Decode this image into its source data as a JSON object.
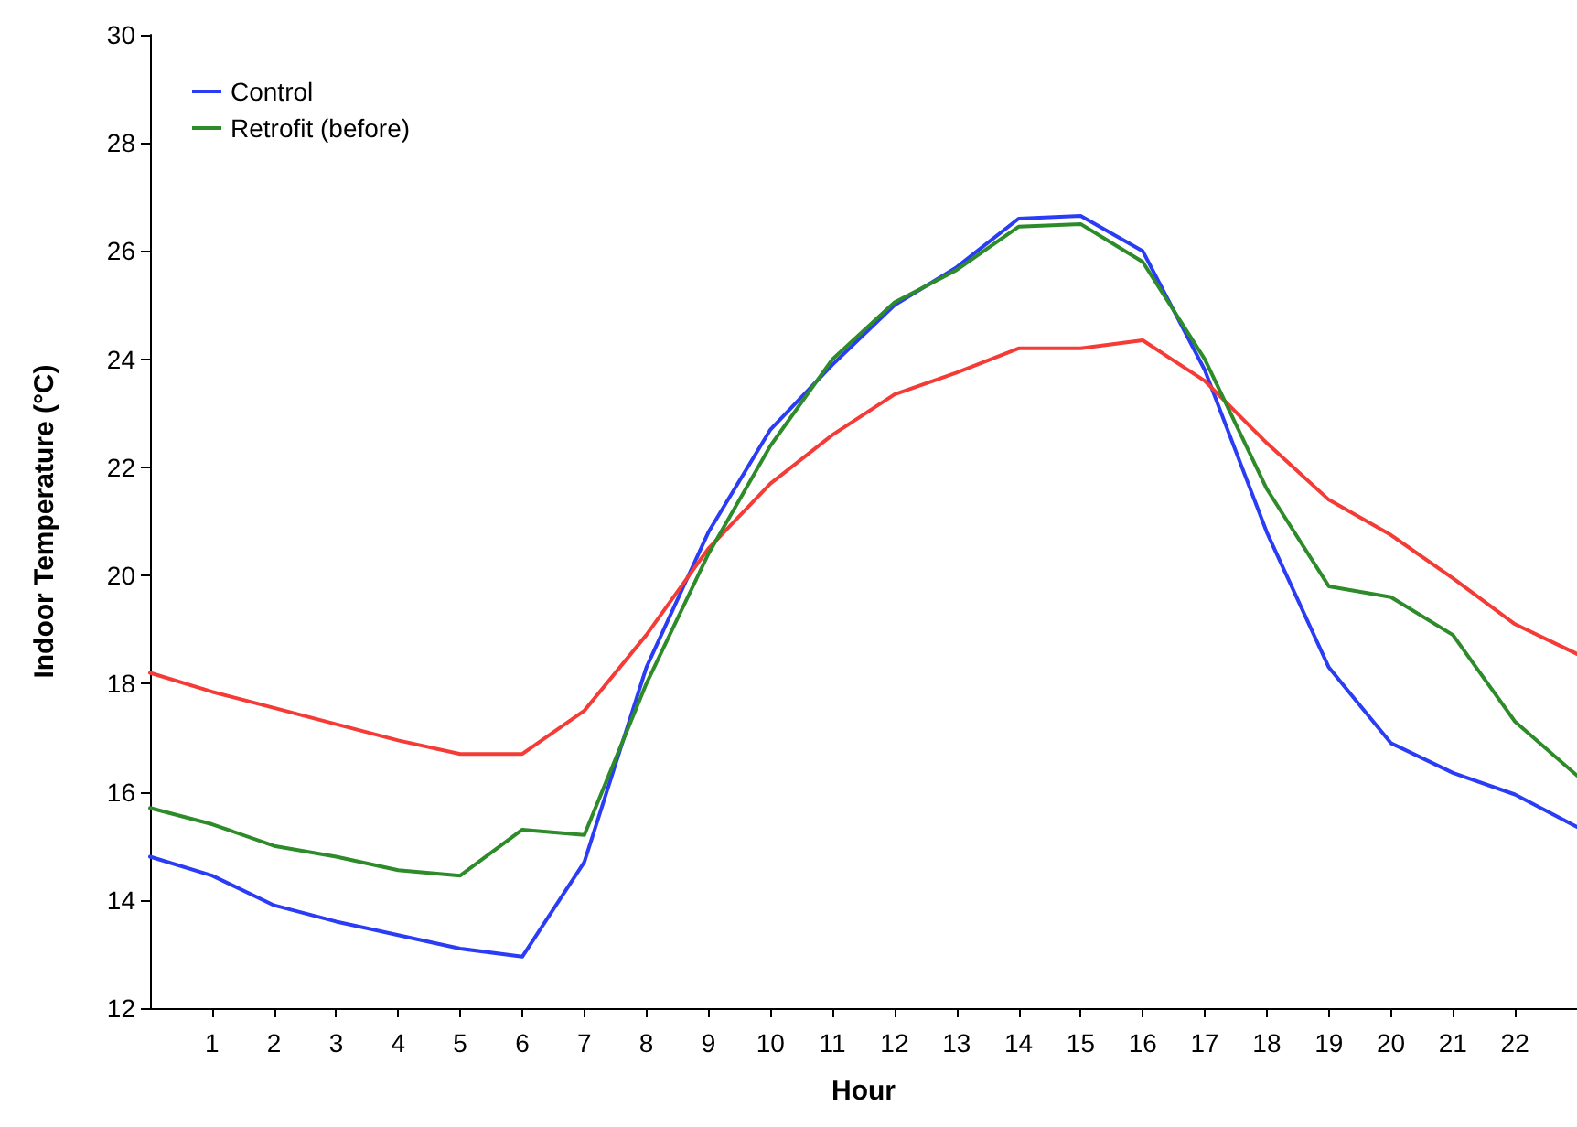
{
  "chart_data": {
    "type": "line",
    "xlabel": "Hour",
    "ylabel": "Indoor Temperature (°C)",
    "x": [
      0,
      1,
      2,
      3,
      4,
      5,
      6,
      7,
      8,
      9,
      10,
      11,
      12,
      13,
      14,
      15,
      16,
      17,
      18,
      19,
      20,
      21,
      22,
      23
    ],
    "series": [
      {
        "name": "Control",
        "color": "#2b3cf5",
        "values": [
          14.8,
          14.45,
          13.9,
          13.6,
          13.35,
          13.1,
          12.95,
          14.7,
          18.3,
          20.8,
          22.7,
          23.9,
          25.0,
          25.7,
          26.6,
          26.65,
          26.0,
          23.8,
          20.8,
          18.3,
          16.9,
          16.35,
          15.95,
          15.35
        ]
      },
      {
        "color": "#f53b36",
        "values": [
          18.2,
          17.85,
          17.55,
          17.25,
          16.95,
          16.7,
          16.7,
          17.5,
          18.9,
          20.5,
          21.7,
          22.6,
          23.35,
          23.75,
          24.2,
          24.2,
          24.35,
          23.6,
          22.45,
          21.4,
          20.75,
          19.95,
          19.1,
          18.55
        ]
      },
      {
        "name": "Retrofit (before)",
        "color": "#2e8b2a",
        "values": [
          15.7,
          15.4,
          15.0,
          14.8,
          14.55,
          14.45,
          15.3,
          15.2,
          18.0,
          20.4,
          22.4,
          24.0,
          25.05,
          25.65,
          26.45,
          26.5,
          25.8,
          24.0,
          21.6,
          19.8,
          19.6,
          18.9,
          17.3,
          16.3
        ]
      }
    ],
    "xlim": [
      0,
      23
    ],
    "xticks": [
      1,
      2,
      3,
      4,
      5,
      6,
      7,
      8,
      9,
      10,
      11,
      12,
      13,
      14,
      15,
      16,
      17,
      18,
      19,
      20,
      21,
      22
    ],
    "ylim": [
      12,
      30
    ],
    "yticks": [
      12,
      14,
      16,
      18,
      20,
      22,
      24,
      26,
      28,
      30
    ],
    "legend": "top left",
    "grid": false,
    "marker": "none",
    "line_style": "solid"
  }
}
